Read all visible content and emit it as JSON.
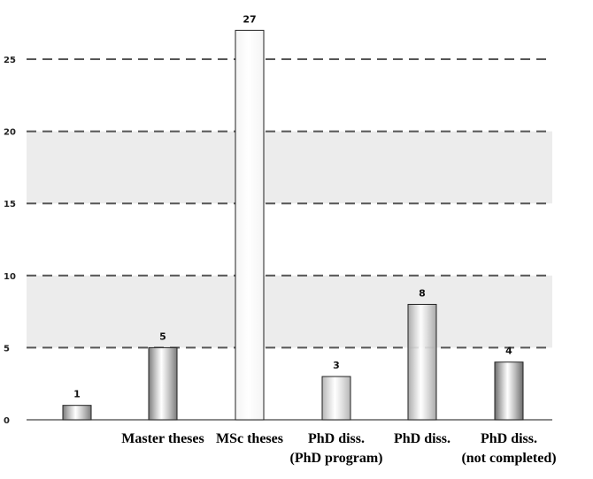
{
  "chart_data": {
    "type": "bar",
    "categories": [
      [
        "",
        ""
      ],
      [
        "Master theses",
        ""
      ],
      [
        "MSc theses",
        ""
      ],
      [
        "PhD diss.",
        "(PhD program)"
      ],
      [
        "PhD diss.",
        ""
      ],
      [
        "PhD diss.",
        "(not completed)"
      ]
    ],
    "values": [
      1,
      5,
      27,
      3,
      8,
      4
    ],
    "data_labels": [
      "1",
      "5",
      "27",
      "3",
      "8",
      "4"
    ],
    "ylim": [
      0,
      27
    ],
    "yticks": [
      0,
      5,
      10,
      15,
      20,
      25
    ],
    "ytick_labels": [
      "0",
      "5",
      "10",
      "15",
      "20",
      "25"
    ],
    "grid": "dashed horizontal, alternating shaded bands",
    "title": "",
    "xlabel": "",
    "ylabel": "",
    "colors": {
      "band": "#ececec",
      "gridline": "#555555",
      "baseline": "#444444",
      "bar_outline": "#222222",
      "bars": [
        "#7a7a7a",
        "#7a7a7a",
        "#f4f4f4",
        "#b5b5b5",
        "#a8a8a8",
        "#6a6a6a"
      ]
    }
  }
}
